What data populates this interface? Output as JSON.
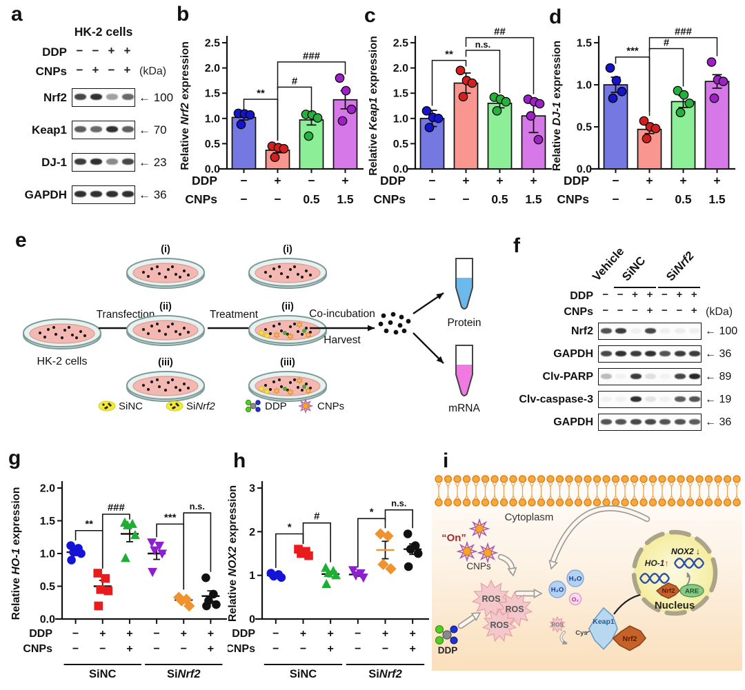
{
  "panel_letters": {
    "a": "a",
    "b": "b",
    "c": "c",
    "d": "d",
    "e": "e",
    "f": "f",
    "g": "g",
    "h": "h",
    "i": "i"
  },
  "panel_a": {
    "title": "HK-2 cells",
    "kda_label": "(kDa)",
    "condition_rows": [
      {
        "name": "DDP",
        "values": [
          "−",
          "−",
          "+",
          "+"
        ]
      },
      {
        "name": "CNPs",
        "values": [
          "−",
          "+",
          "−",
          "+"
        ]
      }
    ],
    "blots": [
      {
        "name": "Nrf2",
        "kda": "100",
        "bands": [
          0.8,
          0.9,
          0.4,
          0.65
        ]
      },
      {
        "name": "Keap1",
        "kda": "70",
        "bands": [
          0.7,
          0.65,
          0.9,
          0.7
        ]
      },
      {
        "name": "DJ-1",
        "kda": "23",
        "bands": [
          0.85,
          0.9,
          0.5,
          0.8
        ]
      },
      {
        "name": "GAPDH",
        "kda": "36",
        "bands": [
          0.9,
          0.9,
          0.9,
          0.9
        ]
      }
    ]
  },
  "panel_f": {
    "kda_label": "(kDa)",
    "group_headers": [
      {
        "parts": [
          {
            "t": "Vehicle"
          }
        ],
        "start": 0,
        "end": 0,
        "underline": false
      },
      {
        "parts": [
          {
            "t": "SiNC"
          }
        ],
        "start": 1,
        "end": 3,
        "underline": true
      },
      {
        "parts": [
          {
            "t": "Si"
          },
          {
            "t": "Nrf2",
            "i": true
          }
        ],
        "start": 4,
        "end": 6,
        "underline": true
      }
    ],
    "condition_rows": [
      {
        "name": "DDP",
        "values": [
          "−",
          "−",
          "+",
          "+",
          "−",
          "+",
          "+"
        ]
      },
      {
        "name": "CNPs",
        "values": [
          "−",
          "−",
          "−",
          "+",
          "−",
          "−",
          "+"
        ]
      }
    ],
    "blots": [
      {
        "name": "Nrf2",
        "kda": "100",
        "bands": [
          0.75,
          0.85,
          0.05,
          0.8,
          0.05,
          0.06,
          0.05
        ]
      },
      {
        "name": "GAPDH",
        "kda": "36",
        "bands": [
          0.8,
          0.9,
          0.85,
          0.9,
          0.75,
          0.85,
          0.85
        ]
      },
      {
        "name": "Clv-PARP",
        "kda": "89",
        "bands": [
          0.28,
          0.04,
          0.85,
          0.12,
          0.04,
          0.8,
          0.95
        ]
      },
      {
        "name": "Clv-caspase-3",
        "kda": "19",
        "bands": [
          0.04,
          0.03,
          0.9,
          0.1,
          0.03,
          0.7,
          0.75
        ]
      },
      {
        "name": "GAPDH",
        "kda": "36",
        "bands": [
          0.75,
          0.75,
          0.8,
          0.8,
          0.75,
          0.75,
          0.7
        ]
      }
    ]
  },
  "panel_e": {
    "cell_label": "HK-2 cells",
    "step1_label": "Transfection",
    "step2_label": "Treatment",
    "step3_label_top": "Co-incubation",
    "step3_label_bottom": "Harvest",
    "dish_tags": [
      "(i)",
      "(ii)",
      "(iii)"
    ],
    "outputs": [
      {
        "label": "Protein",
        "color": "#6cb9ec"
      },
      {
        "label": "mRNA",
        "color": "#f07ae2"
      }
    ],
    "legend": [
      {
        "parts": [
          {
            "t": "SiNC"
          }
        ],
        "icon": "sirna"
      },
      {
        "parts": [
          {
            "t": "Si"
          },
          {
            "t": "Nrf2",
            "i": true
          }
        ],
        "icon": "sirna"
      },
      {
        "parts": [
          {
            "t": "DDP"
          }
        ],
        "icon": "ddp"
      },
      {
        "parts": [
          {
            "t": "CNPs"
          }
        ],
        "icon": "cnp"
      }
    ]
  },
  "panel_i": {
    "cytoplasm_label": "Cytoplasm",
    "on_label": "“On”",
    "cnps_label": "CNPs",
    "ddp_label": "DDP",
    "ros_labels": [
      "ROS",
      "ROS",
      "ROS"
    ],
    "ros_small_label": "ROS",
    "h2o_labels": [
      "H₂O",
      "H₂O"
    ],
    "o2_label": "O₂",
    "cys_label": "Cys",
    "keap1_label": "Keap1",
    "nrf2_label": "Nrf2",
    "nucleus_label": "Nucleus",
    "nox2_label": "NOX2",
    "nox2_arrow": "↓",
    "ho1_label": "HO-1",
    "ho1_arrow": "↑",
    "are_label": "ARE",
    "nrf2_nuc_label": "Nrf2",
    "membrane_color": "#f7a93e"
  },
  "chart_data": [
    {
      "id": "b",
      "type": "bar",
      "ylabel_parts": [
        {
          "t": "Relative "
        },
        {
          "t": "Nrf2",
          "i": true
        },
        {
          "t": " expression"
        }
      ],
      "ylim": [
        0,
        2.5
      ],
      "yticks": [
        "0.0",
        "0.5",
        "1.0",
        "1.5",
        "2.0",
        "2.5"
      ],
      "bars": [
        {
          "value": 1.02,
          "err": 0.05,
          "fill": "#7678e2",
          "dot": "#1414cc",
          "points": [
            1.1,
            1.09,
            1.07,
            0.88
          ]
        },
        {
          "value": 0.37,
          "err": 0.05,
          "fill": "#f9968f",
          "dot": "#d41f1f",
          "points": [
            0.45,
            0.42,
            0.4,
            0.23
          ]
        },
        {
          "value": 0.97,
          "err": 0.1,
          "fill": "#8cee96",
          "dot": "#28b03e",
          "points": [
            1.08,
            1.07,
            1.01,
            0.65
          ]
        },
        {
          "value": 1.37,
          "err": 0.18,
          "fill": "#d678e8",
          "dot": "#a020c8",
          "points": [
            1.8,
            1.55,
            1.18,
            0.95
          ]
        }
      ],
      "xrows": [
        {
          "name": "DDP",
          "values": [
            "−",
            "+",
            "−",
            "+"
          ]
        },
        {
          "name": "CNPs",
          "values": [
            "−",
            "−",
            "0.5",
            "1.5"
          ]
        }
      ],
      "sig": [
        {
          "i": 0,
          "j": 1,
          "y": 1.38,
          "d1": 0.22,
          "d2": 0.82,
          "label": "**"
        },
        {
          "i": 1,
          "j": 2,
          "y": 1.62,
          "d1": 1.06,
          "d2": 0.5,
          "label": "#"
        },
        {
          "i": 1,
          "j": 3,
          "y": 2.12,
          "d1": 0.54,
          "d2": 0.25,
          "label": "###"
        }
      ]
    },
    {
      "id": "c",
      "type": "bar",
      "ylabel_parts": [
        {
          "t": "Relative "
        },
        {
          "t": "Keap1",
          "i": true
        },
        {
          "t": " expression"
        }
      ],
      "ylim": [
        0,
        2.5
      ],
      "yticks": [
        "0.0",
        "0.5",
        "1.0",
        "1.5",
        "2.0",
        "2.5"
      ],
      "bars": [
        {
          "value": 1.0,
          "err": 0.16,
          "fill": "#7678e2",
          "dot": "#1414cc",
          "points": [
            1.15,
            1.02,
            1.0,
            0.82
          ]
        },
        {
          "value": 1.7,
          "err": 0.2,
          "fill": "#f9968f",
          "dot": "#d41f1f",
          "points": [
            1.95,
            1.75,
            1.7,
            1.43
          ]
        },
        {
          "value": 1.3,
          "err": 0.09,
          "fill": "#8cee96",
          "dot": "#28b03e",
          "points": [
            1.42,
            1.38,
            1.33,
            1.15
          ]
        },
        {
          "value": 1.05,
          "err": 0.33,
          "fill": "#d678e8",
          "dot": "#a020c8",
          "points": [
            1.38,
            1.33,
            1.29,
            1.05,
            0.58
          ]
        }
      ],
      "xrows": [
        {
          "name": "DDP",
          "values": [
            "−",
            "+",
            "+",
            "+"
          ]
        },
        {
          "name": "CNPs",
          "values": [
            "−",
            "−",
            "0.5",
            "1.5"
          ]
        }
      ],
      "sig": [
        {
          "i": 0,
          "j": 1,
          "y": 2.15,
          "d1": 0.9,
          "d2": 0.12,
          "label": "**"
        },
        {
          "i": 1,
          "j": 2,
          "y": 2.35,
          "d1": 0.13,
          "d2": 0.85,
          "label": "n.s."
        },
        {
          "i": 1,
          "j": 3,
          "y": 2.6,
          "d1": 0.18,
          "d2": 1.12,
          "label": "##"
        }
      ]
    },
    {
      "id": "d",
      "type": "bar",
      "ylabel_parts": [
        {
          "t": "Relative "
        },
        {
          "t": "DJ-1",
          "i": true
        },
        {
          "t": " expression"
        }
      ],
      "ylim": [
        0,
        1.5
      ],
      "yticks": [
        "0.0",
        "0.5",
        "1.0",
        "1.5"
      ],
      "bars": [
        {
          "value": 1.0,
          "err": 0.09,
          "fill": "#7678e2",
          "dot": "#1414cc",
          "points": [
            1.2,
            1.05,
            0.92,
            0.84
          ]
        },
        {
          "value": 0.47,
          "err": 0.05,
          "fill": "#f9968f",
          "dot": "#d41f1f",
          "points": [
            0.57,
            0.5,
            0.48,
            0.36
          ]
        },
        {
          "value": 0.8,
          "err": 0.07,
          "fill": "#8cee96",
          "dot": "#28b03e",
          "points": [
            0.93,
            0.88,
            0.78,
            0.67
          ]
        },
        {
          "value": 1.04,
          "err": 0.08,
          "fill": "#d678e8",
          "dot": "#a020c8",
          "points": [
            1.27,
            1.06,
            1.04,
            0.84
          ]
        }
      ],
      "xrows": [
        {
          "name": "DDP",
          "values": [
            "−",
            "+",
            "+",
            "+"
          ]
        },
        {
          "name": "CNPs",
          "values": [
            "−",
            "−",
            "0.5",
            "1.5"
          ]
        }
      ],
      "sig": [
        {
          "i": 0,
          "j": 1,
          "y": 1.33,
          "d1": 0.08,
          "d2": 0.7,
          "label": "***"
        },
        {
          "i": 1,
          "j": 2,
          "y": 1.43,
          "d1": 0.75,
          "d2": 0.45,
          "label": "#"
        },
        {
          "i": 1,
          "j": 3,
          "y": 1.56,
          "d1": 0.16,
          "d2": 0.22,
          "label": "###"
        }
      ]
    },
    {
      "id": "g",
      "type": "scatter",
      "ylabel_parts": [
        {
          "t": "Relative "
        },
        {
          "t": "HO-1",
          "i": true
        },
        {
          "t": " expression"
        }
      ],
      "ylim": [
        0,
        2.0
      ],
      "yticks": [
        "0.0",
        "0.5",
        "1.0",
        "1.5",
        "2.0"
      ],
      "groups": [
        {
          "marker": "circle",
          "color": "#1414d8",
          "mean": 1.02,
          "err": 0.05,
          "points": [
            1.12,
            1.08,
            1.02,
            1.0,
            0.9
          ]
        },
        {
          "marker": "square",
          "color": "#e81c1c",
          "mean": 0.5,
          "err": 0.09,
          "points": [
            0.7,
            0.62,
            0.45,
            0.43,
            0.2
          ]
        },
        {
          "marker": "triangle",
          "color": "#1fae35",
          "mean": 1.3,
          "err": 0.12,
          "points": [
            1.47,
            1.45,
            1.43,
            1.28,
            0.93
          ]
        },
        {
          "marker": "triangle-down",
          "color": "#8e1fd0",
          "mean": 1.0,
          "err": 0.09,
          "points": [
            1.17,
            1.12,
            1.05,
            1.0,
            0.72
          ]
        },
        {
          "marker": "diamond",
          "color": "#f0922d",
          "mean": 0.29,
          "err": 0.04,
          "points": [
            0.33,
            0.3,
            0.28,
            0.2
          ]
        },
        {
          "marker": "circle",
          "color": "#111111",
          "mean": 0.35,
          "err": 0.08,
          "points": [
            0.63,
            0.38,
            0.28,
            0.22,
            0.2
          ]
        }
      ],
      "xrows": [
        {
          "name": "DDP",
          "values": [
            "−",
            "+",
            "+",
            "−",
            "+",
            "+"
          ]
        },
        {
          "name": "CNPs",
          "values": [
            "−",
            "−",
            "+",
            "−",
            "−",
            "+"
          ]
        }
      ],
      "group_labels": [
        {
          "parts": [
            {
              "t": "SiNC"
            }
          ],
          "start": 0,
          "end": 2
        },
        {
          "parts": [
            {
              "t": "Si"
            },
            {
              "t": "Nrf2",
              "i": true
            }
          ],
          "start": 3,
          "end": 5
        }
      ],
      "sig": [
        {
          "i": 0,
          "j": 1,
          "y": 1.35,
          "d1": 0.15,
          "d2": 0.58,
          "label": "**"
        },
        {
          "i": 1,
          "j": 2,
          "y": 1.6,
          "d1": 0.82,
          "d2": 0.08,
          "label": "###"
        },
        {
          "i": 3,
          "j": 4,
          "y": 1.45,
          "d1": 0.2,
          "d2": 1.0,
          "label": "***"
        },
        {
          "i": 4,
          "j": 5,
          "y": 1.62,
          "d1": 1.17,
          "d2": 0.9,
          "label": "n.s."
        }
      ]
    },
    {
      "id": "h",
      "type": "scatter",
      "ylabel_parts": [
        {
          "t": "Relative "
        },
        {
          "t": "NOX2",
          "i": true
        },
        {
          "t": " expression"
        }
      ],
      "ylim": [
        0,
        3
      ],
      "yticks": [
        "0",
        "1",
        "2",
        "3"
      ],
      "groups": [
        {
          "marker": "circle",
          "color": "#1414d8",
          "mean": 1.0,
          "err": 0.03,
          "points": [
            1.05,
            1.02,
            0.98,
            0.95
          ]
        },
        {
          "marker": "square",
          "color": "#e81c1c",
          "mean": 1.52,
          "err": 0.04,
          "points": [
            1.6,
            1.55,
            1.5,
            1.45
          ]
        },
        {
          "marker": "triangle",
          "color": "#1fae35",
          "mean": 1.03,
          "err": 0.06,
          "points": [
            1.17,
            1.1,
            1.05,
            1.0,
            0.8
          ]
        },
        {
          "marker": "triangle-down",
          "color": "#8e1fd0",
          "mean": 1.02,
          "err": 0.04,
          "points": [
            1.12,
            1.05,
            1.0,
            0.95
          ]
        },
        {
          "marker": "diamond",
          "color": "#f0922d",
          "mean": 1.58,
          "err": 0.2,
          "points": [
            1.95,
            1.9,
            1.25,
            1.15
          ],
          "mean_color": "#f0922d"
        },
        {
          "marker": "circle",
          "color": "#111111",
          "mean": 1.6,
          "err": 0.12,
          "points": [
            1.95,
            1.68,
            1.6,
            1.5,
            1.2
          ]
        }
      ],
      "xrows": [
        {
          "name": "DDP",
          "values": [
            "−",
            "+",
            "+",
            "−",
            "+",
            "+"
          ]
        },
        {
          "name": "CNPs",
          "values": [
            "−",
            "−",
            "+",
            "−",
            "−",
            "+"
          ]
        }
      ],
      "group_labels": [
        {
          "parts": [
            {
              "t": "SiNC"
            }
          ],
          "start": 0,
          "end": 2
        },
        {
          "parts": [
            {
              "t": "Si"
            },
            {
              "t": "Nrf2",
              "i": true
            }
          ],
          "start": 3,
          "end": 5
        }
      ],
      "sig": [
        {
          "i": 0,
          "j": 1,
          "y": 1.95,
          "d1": 0.78,
          "d2": 0.23,
          "label": "*"
        },
        {
          "i": 1,
          "j": 2,
          "y": 2.2,
          "d1": 0.48,
          "d2": 0.9,
          "label": "#"
        },
        {
          "i": 3,
          "j": 4,
          "y": 2.3,
          "d1": 1.12,
          "d2": 0.22,
          "label": "*"
        },
        {
          "i": 4,
          "j": 5,
          "y": 2.5,
          "d1": 0.25,
          "d2": 0.42,
          "label": "n.s."
        }
      ]
    }
  ]
}
